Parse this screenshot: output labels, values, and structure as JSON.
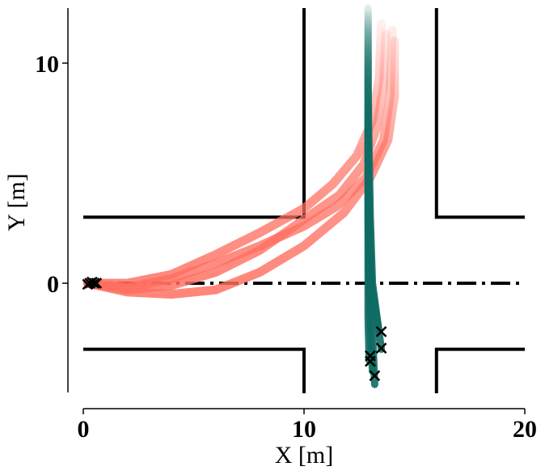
{
  "chart_data": {
    "type": "line",
    "title": "",
    "xlabel": "X [m]",
    "ylabel": "Y [m]",
    "xlim": [
      0,
      20
    ],
    "ylim": [
      -5,
      12.5
    ],
    "xticks": [
      0,
      10,
      20
    ],
    "yticks": [
      0,
      10
    ],
    "grid": false,
    "legend": "none",
    "colors": {
      "road": "#000000",
      "red_trajectories": "#ff6f61",
      "teal_trajectories": "#0e6b63",
      "markers": "#000000"
    },
    "road_boundaries": [
      {
        "name": "upper-left-curb",
        "x": [
          0,
          10,
          10
        ],
        "y": [
          3,
          3,
          12.5
        ]
      },
      {
        "name": "lower-left-curb",
        "x": [
          0,
          10,
          10
        ],
        "y": [
          -3,
          -3,
          -5
        ]
      },
      {
        "name": "upper-right-curb",
        "x": [
          16,
          16,
          20
        ],
        "y": [
          12.5,
          3,
          3
        ]
      },
      {
        "name": "lower-right-curb",
        "x": [
          16,
          16,
          20
        ],
        "y": [
          -5,
          -3,
          -3
        ]
      }
    ],
    "centerline": {
      "x": [
        0,
        20
      ],
      "y": [
        0,
        0
      ],
      "style": "dash-dot"
    },
    "series": [
      {
        "group": "red",
        "x": [
          0.2,
          2,
          4,
          6,
          8,
          10,
          11.5,
          12.8,
          13.6,
          13.9,
          14.0
        ],
        "y": [
          0,
          -0.2,
          0.2,
          0.9,
          1.7,
          2.6,
          3.5,
          4.8,
          6.5,
          8.5,
          11.5
        ]
      },
      {
        "group": "red",
        "x": [
          0.2,
          2,
          4,
          6,
          8,
          10,
          11.8,
          13.0,
          13.8,
          14.1,
          14.1
        ],
        "y": [
          0,
          -0.4,
          -0.5,
          -0.3,
          0.5,
          1.7,
          3.2,
          4.8,
          6.5,
          8.5,
          11.0
        ]
      },
      {
        "group": "red",
        "x": [
          0.2,
          2,
          4,
          6,
          8,
          10,
          11.3,
          12.4,
          13.1,
          13.4,
          13.5
        ],
        "y": [
          0,
          0.0,
          0.4,
          1.3,
          2.3,
          3.4,
          4.5,
          5.8,
          7.4,
          9.3,
          11.8
        ]
      },
      {
        "group": "red",
        "x": [
          0.2,
          2,
          4,
          6,
          8,
          10,
          11.6,
          12.7,
          13.3,
          13.6,
          13.7
        ],
        "y": [
          0,
          -0.3,
          -0.1,
          0.5,
          1.5,
          2.9,
          4.0,
          5.4,
          7.1,
          9.0,
          11.3
        ]
      },
      {
        "group": "teal",
        "x": [
          13.1,
          13.0,
          12.95,
          12.9,
          12.9,
          12.9,
          12.9
        ],
        "y": [
          -4.0,
          -2.0,
          0,
          3,
          6,
          9,
          12.5
        ]
      },
      {
        "group": "teal",
        "x": [
          13.5,
          13.3,
          13.1,
          13.0,
          12.95,
          12.9,
          12.9
        ],
        "y": [
          -3.0,
          -1.5,
          0,
          3,
          6,
          9,
          12.5
        ]
      },
      {
        "group": "teal",
        "x": [
          13.2,
          13.1,
          13.0,
          12.95,
          12.9,
          12.9,
          12.9
        ],
        "y": [
          -4.6,
          -2.2,
          0,
          3,
          6,
          9,
          12.5
        ]
      },
      {
        "group": "teal",
        "x": [
          13.4,
          13.2,
          13.05,
          12.95,
          12.9,
          12.9,
          12.9
        ],
        "y": [
          -2.2,
          -1.0,
          0,
          3,
          6,
          9,
          12.5
        ]
      },
      {
        "group": "teal",
        "x": [
          12.95,
          12.9,
          12.9,
          12.9,
          12.9,
          12.9
        ],
        "y": [
          -3.5,
          -1.5,
          0,
          4,
          8,
          12.5
        ]
      }
    ],
    "start_markers": [
      {
        "x": 0.3,
        "y": 0.0
      },
      {
        "x": 0.5,
        "y": 0.0
      },
      {
        "x": 0.2,
        "y": -0.05
      },
      {
        "x": 0.6,
        "y": 0.0
      },
      {
        "x": 0.4,
        "y": 0.05
      },
      {
        "x": 13.5,
        "y": -2.2
      },
      {
        "x": 13.5,
        "y": -2.95
      },
      {
        "x": 13.0,
        "y": -3.3
      },
      {
        "x": 13.0,
        "y": -3.55
      },
      {
        "x": 13.2,
        "y": -4.2
      }
    ]
  }
}
